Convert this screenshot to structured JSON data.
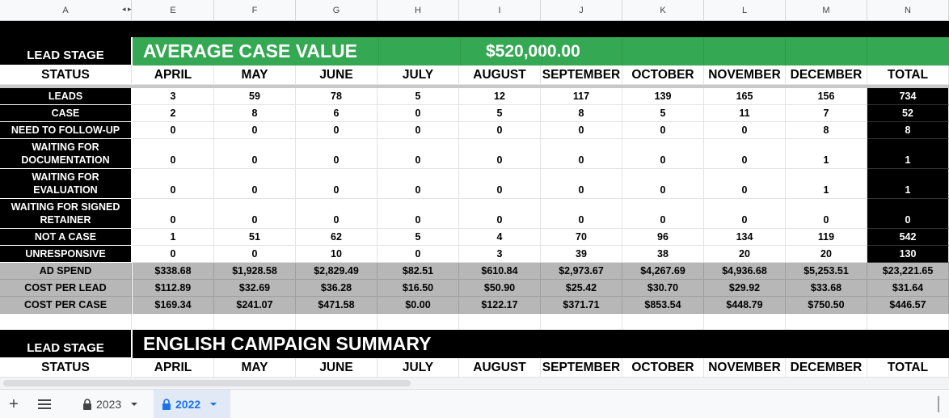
{
  "columns": [
    "A",
    "E",
    "F",
    "G",
    "H",
    "I",
    "J",
    "K",
    "L",
    "M",
    "N"
  ],
  "section1": {
    "lead_stage": "LEAD STAGE",
    "banner_title": "AVERAGE CASE VALUE",
    "banner_value": "$520,000.00",
    "status": "STATUS",
    "months": [
      "APRIL",
      "MAY",
      "JUNE",
      "JULY",
      "AUGUST",
      "SEPTEMBER",
      "OCTOBER",
      "NOVEMBER",
      "DECEMBER"
    ],
    "total": "TOTAL",
    "rows": [
      {
        "label": "LEADS",
        "values": [
          "3",
          "59",
          "78",
          "5",
          "12",
          "117",
          "139",
          "165",
          "156"
        ],
        "total": "734"
      },
      {
        "label": "CASE",
        "values": [
          "2",
          "8",
          "6",
          "0",
          "5",
          "8",
          "5",
          "11",
          "7"
        ],
        "total": "52"
      },
      {
        "label": "NEED TO FOLLOW-UP",
        "values": [
          "0",
          "0",
          "0",
          "0",
          "0",
          "0",
          "0",
          "0",
          "8"
        ],
        "total": "8"
      },
      {
        "label": "WAITING FOR DOCUMENTATION",
        "values": [
          "0",
          "0",
          "0",
          "0",
          "0",
          "0",
          "0",
          "0",
          "1"
        ],
        "total": "1"
      },
      {
        "label": "WAITING FOR EVALUATION",
        "values": [
          "0",
          "0",
          "0",
          "0",
          "0",
          "0",
          "0",
          "0",
          "1"
        ],
        "total": "1"
      },
      {
        "label": "WAITING FOR SIGNED RETAINER",
        "values": [
          "0",
          "0",
          "0",
          "0",
          "0",
          "0",
          "0",
          "0",
          "0"
        ],
        "total": "0"
      },
      {
        "label": "NOT A CASE",
        "values": [
          "1",
          "51",
          "62",
          "5",
          "4",
          "70",
          "96",
          "134",
          "119"
        ],
        "total": "542"
      },
      {
        "label": "UNRESPONSIVE",
        "values": [
          "0",
          "0",
          "10",
          "0",
          "3",
          "39",
          "38",
          "20",
          "20"
        ],
        "total": "130"
      }
    ],
    "money_rows": [
      {
        "label": "AD SPEND",
        "values": [
          "$338.68",
          "$1,928.58",
          "$2,829.49",
          "$82.51",
          "$610.84",
          "$2,973.67",
          "$4,267.69",
          "$4,936.68",
          "$5,253.51"
        ],
        "total": "$23,221.65"
      },
      {
        "label": "COST PER LEAD",
        "values": [
          "$112.89",
          "$32.69",
          "$36.28",
          "$16.50",
          "$50.90",
          "$25.42",
          "$30.70",
          "$29.92",
          "$33.68"
        ],
        "total": "$31.64"
      },
      {
        "label": "COST PER CASE",
        "values": [
          "$169.34",
          "$241.07",
          "$471.58",
          "$0.00",
          "$122.17",
          "$371.71",
          "$853.54",
          "$448.79",
          "$750.50"
        ],
        "total": "$446.57"
      }
    ]
  },
  "section2": {
    "lead_stage": "LEAD STAGE",
    "banner_title": "ENGLISH CAMPAIGN SUMMARY",
    "status": "STATUS",
    "months": [
      "APRIL",
      "MAY",
      "JUNE",
      "JULY",
      "AUGUST",
      "SEPTEMBER",
      "OCTOBER",
      "NOVEMBER",
      "DECEMBER"
    ],
    "total": "TOTAL"
  },
  "sheet_tabs": [
    {
      "label": "2023",
      "active": false
    },
    {
      "label": "2022",
      "active": true
    }
  ],
  "colors": {
    "green": "#34a853",
    "accent": "#1a73e8",
    "gray": "#b7b7b7"
  }
}
